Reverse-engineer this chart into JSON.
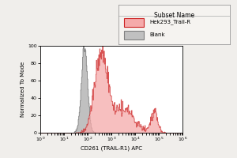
{
  "xlabel": "CD261 (TRAIL-R1) APC",
  "ylabel": "Normalized To Mode",
  "legend_title": "Subset Name",
  "legend_entries": [
    "Hek293_Trail-R",
    "Blank"
  ],
  "xmin": 1.0,
  "xmax": 1000000.0,
  "ymin": 0,
  "ymax": 100,
  "yticks": [
    0,
    20,
    40,
    60,
    80,
    100
  ],
  "background_color": "#f0eeeb",
  "plot_bg_color": "#ffffff",
  "blank_facecolor": "#c0c0c0",
  "blank_edgecolor": "#808080",
  "red_facecolor": "#f5aaaa",
  "red_edgecolor": "#cc2222"
}
